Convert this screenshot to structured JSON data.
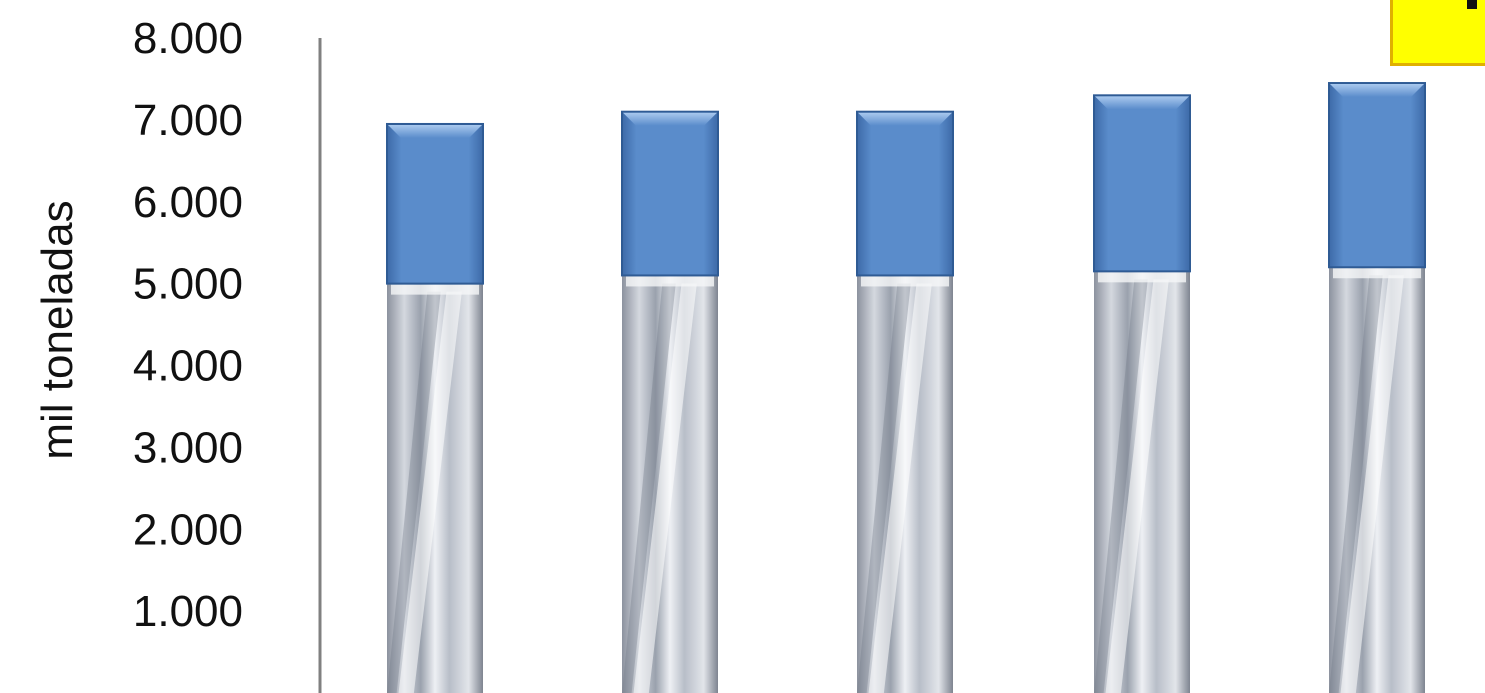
{
  "chart_data": {
    "type": "bar",
    "stacked": true,
    "title": "",
    "xlabel": "",
    "ylabel": "mil toneladas",
    "ylim": [
      0,
      8000
    ],
    "yticks": [
      "8.000",
      "7.000",
      "6.000",
      "5.000",
      "4.000",
      "3.000",
      "2.000",
      "1.000"
    ],
    "ytick_values": [
      8000,
      7000,
      6000,
      5000,
      4000,
      3000,
      2000,
      1000
    ],
    "categories": [
      "",
      "",
      "",
      "",
      ""
    ],
    "series": [
      {
        "values": [
          5000,
          5100,
          5100,
          5150,
          5200
        ],
        "color": "#c8cdd6"
      },
      {
        "values": [
          1950,
          2000,
          2000,
          2150,
          2250
        ],
        "color": "#4f81bd"
      }
    ],
    "grid": false,
    "legend": "none"
  },
  "badge": {
    "color": "#ffff00"
  }
}
